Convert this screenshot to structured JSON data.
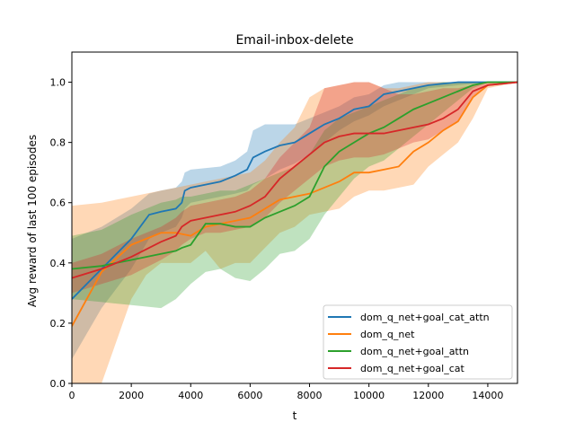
{
  "chart_data": {
    "type": "line",
    "title": "Email-inbox-delete",
    "xlabel": "t",
    "ylabel": "Avg reward of last 100 episodes",
    "xlim": [
      0,
      15000
    ],
    "ylim": [
      0,
      1.1
    ],
    "xticks": [
      0,
      2000,
      4000,
      6000,
      8000,
      10000,
      12000,
      14000
    ],
    "yticks": [
      0.0,
      0.2,
      0.4,
      0.6,
      0.8,
      1.0
    ],
    "xtick_labels": [
      "0",
      "2000",
      "4000",
      "6000",
      "8000",
      "10000",
      "12000",
      "14000"
    ],
    "ytick_labels": [
      "0.0",
      "0.2",
      "0.4",
      "0.6",
      "0.8",
      "1.0"
    ],
    "grid": false,
    "legend_position": "bottom-right",
    "series": [
      {
        "name": "dom_q_net+goal_cat_attn",
        "color": "#1f77b4",
        "x": [
          0,
          1000,
          2000,
          2600,
          3000,
          3500,
          3700,
          3800,
          4000,
          5000,
          5500,
          5900,
          6100,
          6500,
          7000,
          7500,
          8000,
          8500,
          9000,
          9500,
          10000,
          10500,
          11000,
          11500,
          12000,
          13000,
          14000,
          15000
        ],
        "y": [
          0.28,
          0.38,
          0.48,
          0.56,
          0.57,
          0.58,
          0.6,
          0.64,
          0.65,
          0.67,
          0.69,
          0.71,
          0.75,
          0.77,
          0.79,
          0.8,
          0.83,
          0.86,
          0.88,
          0.91,
          0.92,
          0.96,
          0.97,
          0.98,
          0.99,
          1.0,
          1.0,
          1.0
        ],
        "lower": [
          0.08,
          0.25,
          0.38,
          0.48,
          0.5,
          0.52,
          0.55,
          0.58,
          0.6,
          0.62,
          0.63,
          0.64,
          0.66,
          0.68,
          0.71,
          0.73,
          0.76,
          0.8,
          0.84,
          0.87,
          0.89,
          0.92,
          0.94,
          0.96,
          0.98,
          0.99,
          1.0,
          1.0
        ],
        "upper": [
          0.48,
          0.52,
          0.58,
          0.63,
          0.64,
          0.65,
          0.67,
          0.7,
          0.71,
          0.72,
          0.74,
          0.77,
          0.84,
          0.86,
          0.86,
          0.86,
          0.88,
          0.9,
          0.92,
          0.95,
          0.96,
          0.99,
          1.0,
          1.0,
          1.0,
          1.0,
          1.0,
          1.0
        ]
      },
      {
        "name": "dom_q_net",
        "color": "#ff7f0e",
        "x": [
          0,
          1000,
          2000,
          2500,
          3000,
          3500,
          4000,
          4500,
          5000,
          5500,
          6000,
          6500,
          7000,
          7500,
          8000,
          8500,
          9000,
          9500,
          10000,
          10500,
          11000,
          11500,
          12000,
          12500,
          13000,
          13500,
          14000,
          15000
        ],
        "y": [
          0.19,
          0.37,
          0.46,
          0.48,
          0.5,
          0.5,
          0.49,
          0.52,
          0.53,
          0.54,
          0.55,
          0.58,
          0.61,
          0.62,
          0.63,
          0.65,
          0.67,
          0.7,
          0.7,
          0.71,
          0.72,
          0.77,
          0.8,
          0.84,
          0.87,
          0.95,
          0.99,
          1.0
        ],
        "lower": [
          0.0,
          0.0,
          0.28,
          0.36,
          0.4,
          0.4,
          0.4,
          0.44,
          0.38,
          0.4,
          0.4,
          0.45,
          0.5,
          0.52,
          0.56,
          0.57,
          0.58,
          0.62,
          0.64,
          0.64,
          0.65,
          0.66,
          0.72,
          0.76,
          0.8,
          0.88,
          0.98,
          1.0
        ],
        "upper": [
          0.59,
          0.6,
          0.62,
          0.63,
          0.64,
          0.65,
          0.66,
          0.67,
          0.68,
          0.69,
          0.7,
          0.74,
          0.8,
          0.85,
          0.95,
          0.98,
          0.99,
          1.0,
          1.0,
          0.98,
          0.98,
          0.99,
          1.0,
          1.0,
          1.0,
          1.0,
          1.0,
          1.0
        ]
      },
      {
        "name": "dom_q_net+goal_attn",
        "color": "#2ca02c",
        "x": [
          0,
          1000,
          2000,
          3000,
          3500,
          3700,
          4000,
          4500,
          5000,
          5500,
          6000,
          6500,
          7000,
          7500,
          8000,
          8500,
          9000,
          9500,
          10000,
          10500,
          11000,
          11500,
          12000,
          12500,
          13000,
          13500,
          14000,
          15000
        ],
        "y": [
          0.38,
          0.39,
          0.41,
          0.43,
          0.44,
          0.45,
          0.46,
          0.53,
          0.53,
          0.52,
          0.52,
          0.55,
          0.57,
          0.59,
          0.62,
          0.72,
          0.77,
          0.8,
          0.83,
          0.85,
          0.88,
          0.91,
          0.93,
          0.95,
          0.97,
          0.99,
          1.0,
          1.0
        ],
        "lower": [
          0.28,
          0.27,
          0.26,
          0.25,
          0.28,
          0.3,
          0.33,
          0.37,
          0.38,
          0.35,
          0.34,
          0.38,
          0.43,
          0.44,
          0.48,
          0.56,
          0.62,
          0.68,
          0.72,
          0.74,
          0.78,
          0.82,
          0.86,
          0.9,
          0.94,
          0.98,
          1.0,
          1.0
        ],
        "upper": [
          0.49,
          0.51,
          0.56,
          0.6,
          0.61,
          0.62,
          0.62,
          0.63,
          0.64,
          0.64,
          0.66,
          0.68,
          0.7,
          0.72,
          0.76,
          0.84,
          0.88,
          0.9,
          0.92,
          0.94,
          0.96,
          0.98,
          0.99,
          1.0,
          1.0,
          1.0,
          1.0,
          1.0
        ]
      },
      {
        "name": "dom_q_net+goal_cat",
        "color": "#d62728",
        "x": [
          0,
          1000,
          2000,
          3000,
          3500,
          3700,
          4000,
          4500,
          5000,
          5500,
          6000,
          6500,
          7000,
          7500,
          8000,
          8500,
          9000,
          9500,
          10000,
          10500,
          11000,
          11500,
          12000,
          12500,
          13000,
          13500,
          14000,
          15000
        ],
        "y": [
          0.35,
          0.38,
          0.42,
          0.47,
          0.49,
          0.52,
          0.54,
          0.55,
          0.56,
          0.57,
          0.59,
          0.62,
          0.68,
          0.72,
          0.76,
          0.8,
          0.82,
          0.83,
          0.83,
          0.83,
          0.84,
          0.85,
          0.86,
          0.88,
          0.91,
          0.97,
          0.99,
          1.0
        ],
        "lower": [
          0.3,
          0.33,
          0.36,
          0.41,
          0.44,
          0.46,
          0.48,
          0.5,
          0.5,
          0.51,
          0.52,
          0.55,
          0.6,
          0.64,
          0.68,
          0.72,
          0.74,
          0.75,
          0.75,
          0.76,
          0.78,
          0.8,
          0.81,
          0.84,
          0.87,
          0.95,
          0.99,
          1.0
        ],
        "upper": [
          0.4,
          0.43,
          0.48,
          0.52,
          0.55,
          0.57,
          0.59,
          0.6,
          0.61,
          0.62,
          0.64,
          0.68,
          0.75,
          0.8,
          0.85,
          0.98,
          0.99,
          1.0,
          1.0,
          0.98,
          0.96,
          0.96,
          0.97,
          0.98,
          0.98,
          0.99,
          1.0,
          1.0
        ]
      }
    ]
  }
}
